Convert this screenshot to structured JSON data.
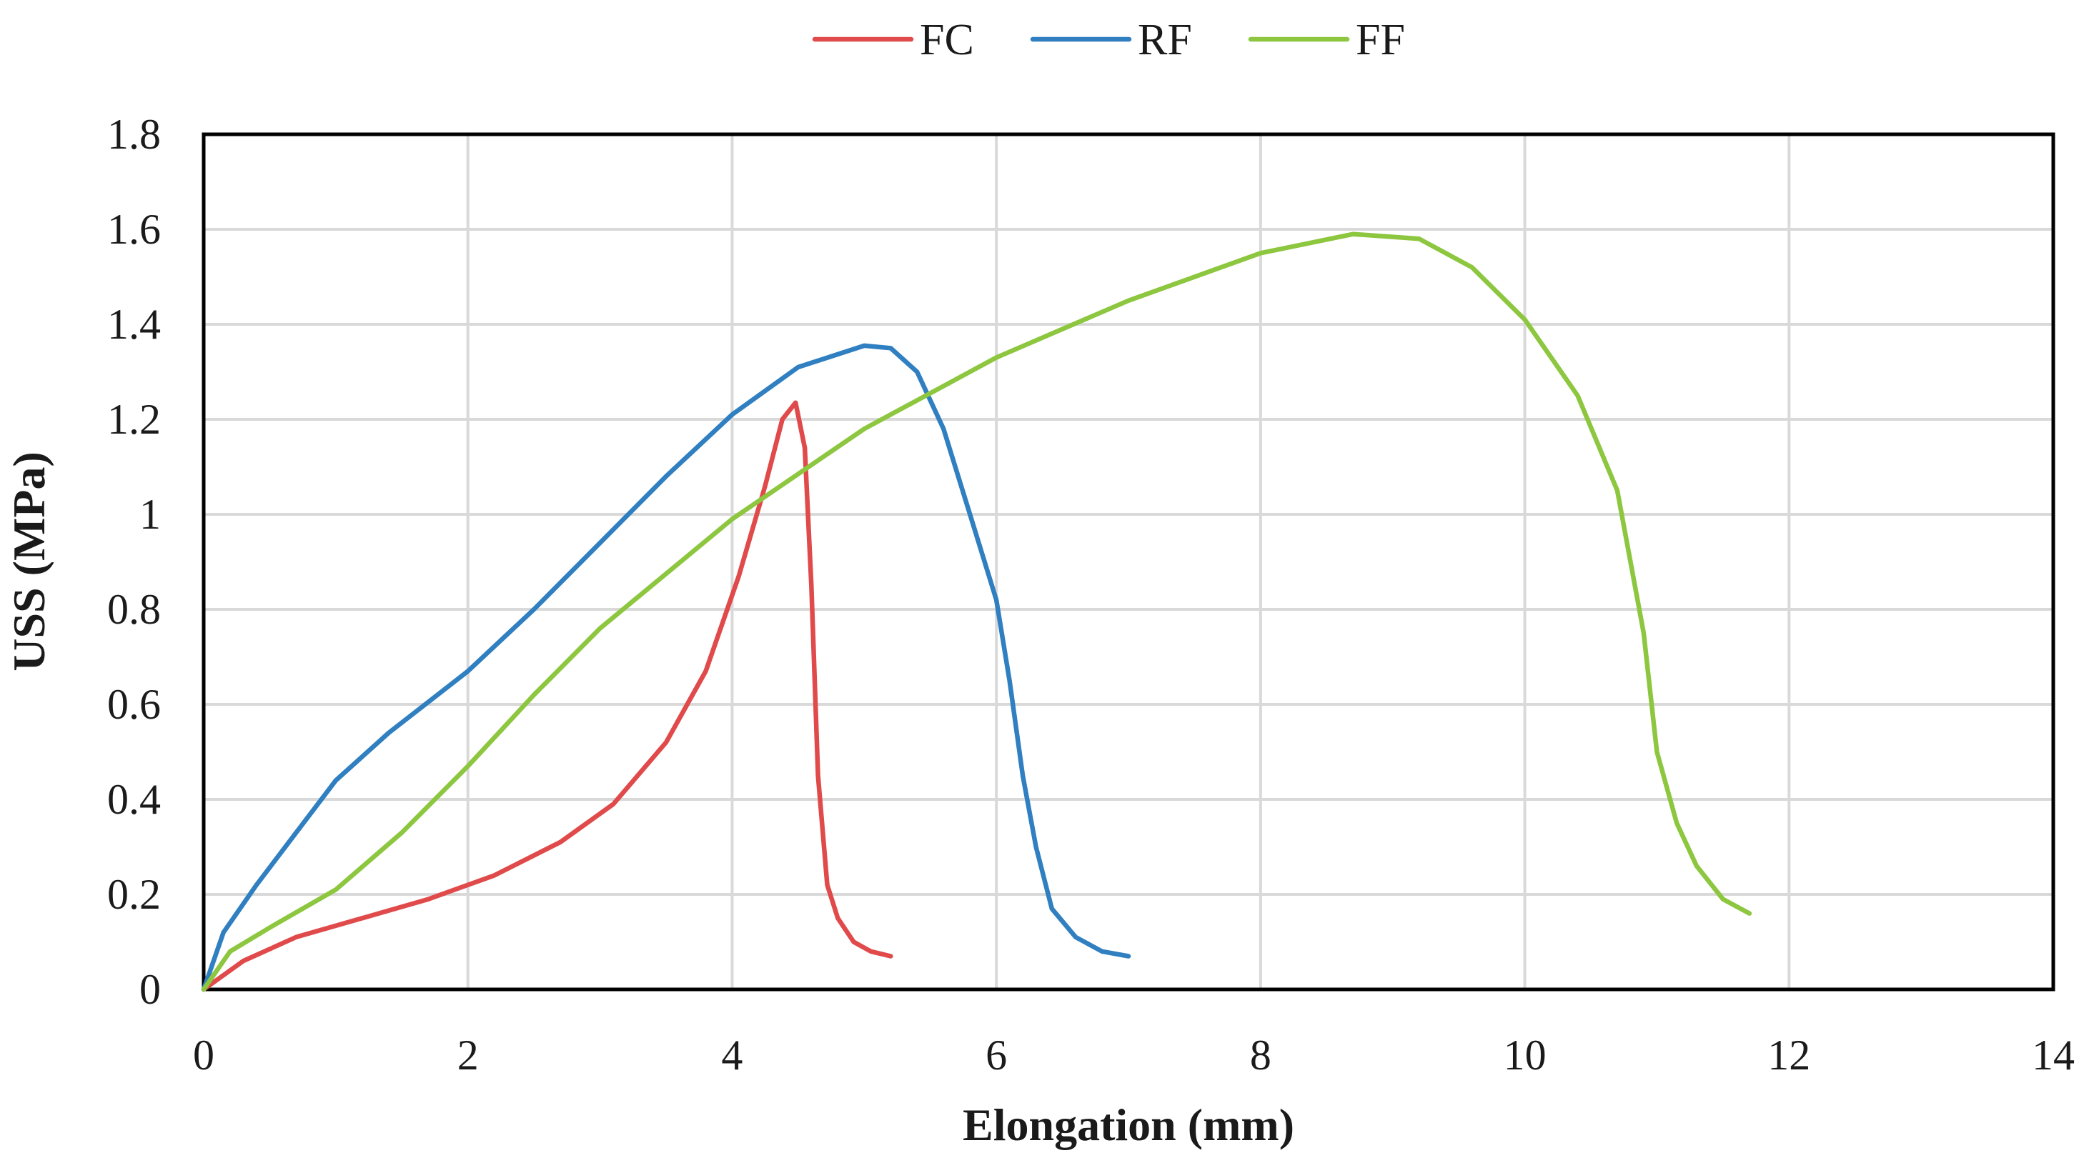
{
  "chart_data": {
    "type": "line",
    "title": "",
    "xlabel": "Elongation (mm)",
    "ylabel": "USS (MPa)",
    "xlim": [
      0,
      14
    ],
    "ylim": [
      0,
      1.8
    ],
    "xticks": [
      0,
      2,
      4,
      6,
      8,
      10,
      12,
      14
    ],
    "yticks": [
      0,
      0.2,
      0.4,
      0.6,
      0.8,
      1,
      1.2,
      1.4,
      1.6,
      1.8
    ],
    "xtick_labels": [
      "0",
      "2",
      "4",
      "6",
      "8",
      "10",
      "12",
      "14"
    ],
    "ytick_labels": [
      "0",
      "0.2",
      "0.4",
      "0.6",
      "0.8",
      "1",
      "1.2",
      "1.4",
      "1.6",
      "1.8"
    ],
    "grid": true,
    "legend_position": "top-center",
    "series": [
      {
        "name": "FC",
        "color": "#e04a4a",
        "points": [
          [
            0,
            0
          ],
          [
            0.3,
            0.06
          ],
          [
            0.7,
            0.11
          ],
          [
            1.2,
            0.15
          ],
          [
            1.7,
            0.19
          ],
          [
            2.2,
            0.24
          ],
          [
            2.7,
            0.31
          ],
          [
            3.1,
            0.39
          ],
          [
            3.5,
            0.52
          ],
          [
            3.8,
            0.67
          ],
          [
            4.05,
            0.87
          ],
          [
            4.25,
            1.06
          ],
          [
            4.38,
            1.2
          ],
          [
            4.48,
            1.235
          ],
          [
            4.55,
            1.14
          ],
          [
            4.6,
            0.85
          ],
          [
            4.65,
            0.45
          ],
          [
            4.72,
            0.22
          ],
          [
            4.8,
            0.15
          ],
          [
            4.92,
            0.1
          ],
          [
            5.05,
            0.08
          ],
          [
            5.2,
            0.07
          ]
        ]
      },
      {
        "name": "RF",
        "color": "#2f7fc1",
        "points": [
          [
            0,
            0
          ],
          [
            0.15,
            0.12
          ],
          [
            0.4,
            0.22
          ],
          [
            0.7,
            0.33
          ],
          [
            1.0,
            0.44
          ],
          [
            1.4,
            0.54
          ],
          [
            2.0,
            0.67
          ],
          [
            2.5,
            0.8
          ],
          [
            3.0,
            0.94
          ],
          [
            3.5,
            1.08
          ],
          [
            4.0,
            1.21
          ],
          [
            4.5,
            1.31
          ],
          [
            5.0,
            1.355
          ],
          [
            5.2,
            1.35
          ],
          [
            5.4,
            1.3
          ],
          [
            5.6,
            1.18
          ],
          [
            5.8,
            1.0
          ],
          [
            6.0,
            0.82
          ],
          [
            6.1,
            0.65
          ],
          [
            6.2,
            0.45
          ],
          [
            6.3,
            0.3
          ],
          [
            6.42,
            0.17
          ],
          [
            6.6,
            0.11
          ],
          [
            6.8,
            0.08
          ],
          [
            7.0,
            0.07
          ]
        ]
      },
      {
        "name": "FF",
        "color": "#8dc63f",
        "points": [
          [
            0,
            0
          ],
          [
            0.2,
            0.08
          ],
          [
            0.5,
            0.13
          ],
          [
            1.0,
            0.21
          ],
          [
            1.5,
            0.33
          ],
          [
            2.0,
            0.47
          ],
          [
            2.5,
            0.62
          ],
          [
            3.0,
            0.76
          ],
          [
            4.0,
            0.99
          ],
          [
            5.0,
            1.18
          ],
          [
            6.0,
            1.33
          ],
          [
            7.0,
            1.45
          ],
          [
            8.0,
            1.55
          ],
          [
            8.7,
            1.59
          ],
          [
            9.2,
            1.58
          ],
          [
            9.6,
            1.52
          ],
          [
            10.0,
            1.41
          ],
          [
            10.4,
            1.25
          ],
          [
            10.7,
            1.05
          ],
          [
            10.9,
            0.75
          ],
          [
            11.0,
            0.5
          ],
          [
            11.15,
            0.35
          ],
          [
            11.3,
            0.26
          ],
          [
            11.5,
            0.19
          ],
          [
            11.7,
            0.16
          ]
        ]
      }
    ]
  }
}
